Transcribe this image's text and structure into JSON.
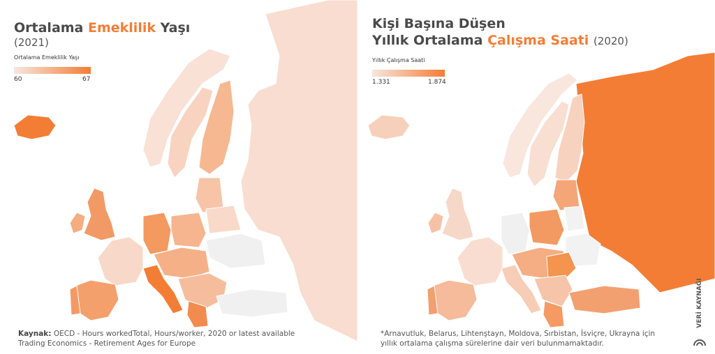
{
  "left": {
    "title_part1": "Ortalama ",
    "title_accent": "Emeklilik",
    "title_part2": " Yaşı",
    "subtitle": "(2021)",
    "legend_title": "Ortalama Emeklilik Yaşı",
    "legend_min": "60",
    "legend_max": "67",
    "source_label": "Kaynak:",
    "source_line1": " OECD - Hours workedTotal, Hours/worker, 2020 or latest available",
    "source_line2": "Trading Economics - Retirement Ages for Europe"
  },
  "right": {
    "title_line1": "Kişi Başına Düşen",
    "title_line2_part1": "Yıllık Ortalama ",
    "title_line2_accent": "Çalışma Saati",
    "year": "(2020)",
    "legend_title": "Yıllık Çalışma Saati",
    "legend_min": "1.331",
    "legend_max": "1.874",
    "note_line1": "*Arnavutluk, Belarus, Lihtenştayn, Moldova, Sırbistan, İsviçre, Ukrayna için",
    "note_line2": "yıllık ortalama çalışma sürelerine dair veri bulunmamaktadır."
  },
  "brand": "VERİ KAYNAĞI",
  "colors": {
    "accent": "#f47d35",
    "low": "#f7e7df",
    "high": "#f47d35",
    "nodata": "#f0f0f0"
  }
}
